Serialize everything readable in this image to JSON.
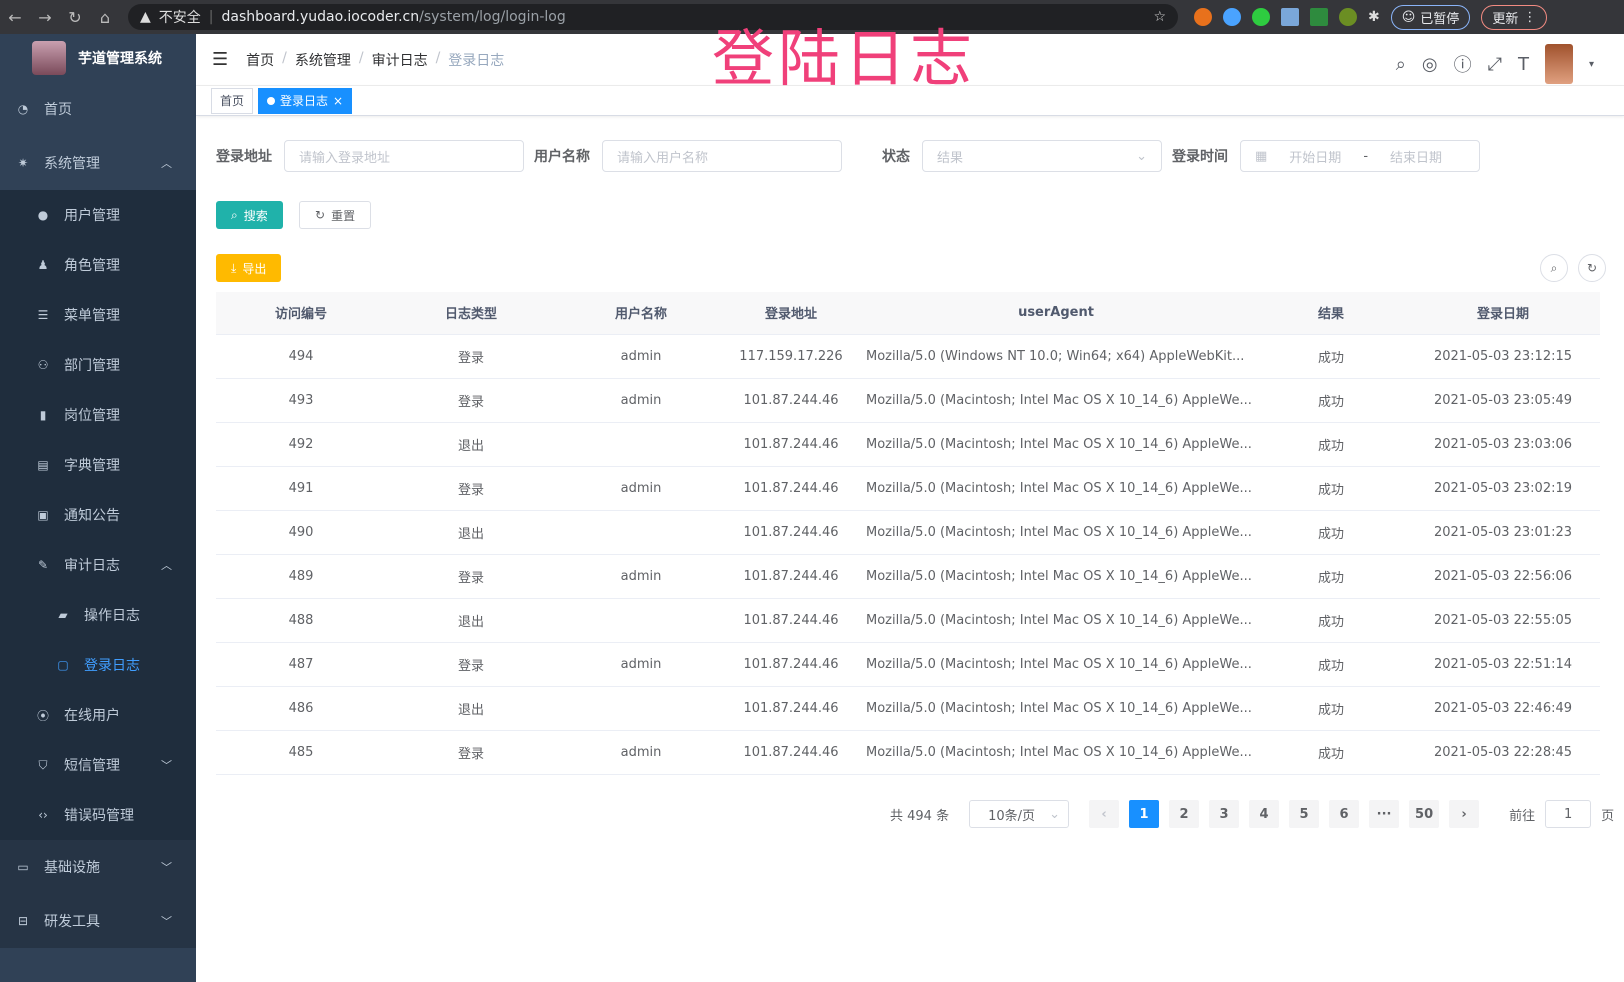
{
  "browser": {
    "security": "不安全",
    "url_host": "dashboard.yudao.iocoder.cn",
    "url_path": "/system/log/login-log",
    "paused": "已暂停",
    "update": "更新"
  },
  "app": {
    "title": "芋道管理系统"
  },
  "watermark": "登陆日志",
  "sidebar": {
    "items": [
      {
        "label": "首页",
        "icon": "dashboard-icon"
      },
      {
        "label": "系统管理",
        "icon": "gear-icon",
        "expanded": true
      },
      {
        "label": "用户管理",
        "icon": "user-icon"
      },
      {
        "label": "角色管理",
        "icon": "role-icon"
      },
      {
        "label": "菜单管理",
        "icon": "menu-icon"
      },
      {
        "label": "部门管理",
        "icon": "tree-icon"
      },
      {
        "label": "岗位管理",
        "icon": "post-icon"
      },
      {
        "label": "字典管理",
        "icon": "dict-icon"
      },
      {
        "label": "通知公告",
        "icon": "message-icon"
      },
      {
        "label": "审计日志",
        "icon": "log-icon",
        "expanded": true
      },
      {
        "label": "操作日志",
        "icon": "form-icon"
      },
      {
        "label": "登录日志",
        "icon": "logininfor-icon",
        "active": true
      },
      {
        "label": "在线用户",
        "icon": "online-icon"
      },
      {
        "label": "短信管理",
        "icon": "shield-icon"
      },
      {
        "label": "错误码管理",
        "icon": "code-icon"
      },
      {
        "label": "基础设施",
        "icon": "monitor-icon"
      },
      {
        "label": "研发工具",
        "icon": "toolbox-icon"
      }
    ]
  },
  "breadcrumb": [
    "首页",
    "系统管理",
    "审计日志",
    "登录日志"
  ],
  "tags": [
    {
      "label": "首页"
    },
    {
      "label": "登录日志",
      "active": true
    }
  ],
  "filters": {
    "ip": {
      "label": "登录地址",
      "placeholder": "请输入登录地址"
    },
    "username": {
      "label": "用户名称",
      "placeholder": "请输入用户名称"
    },
    "status": {
      "label": "状态",
      "placeholder": "结果"
    },
    "time": {
      "label": "登录时间",
      "start": "开始日期",
      "sep": "-",
      "end": "结束日期"
    }
  },
  "buttons": {
    "search": "搜索",
    "reset": "重置",
    "export": "导出"
  },
  "table": {
    "columns": [
      "访问编号",
      "日志类型",
      "用户名称",
      "登录地址",
      "userAgent",
      "结果",
      "登录日期"
    ],
    "rows": [
      [
        "494",
        "登录",
        "admin",
        "117.159.17.226",
        "Mozilla/5.0 (Windows NT 10.0; Win64; x64) AppleWebKit...",
        "成功",
        "2021-05-03 23:12:15"
      ],
      [
        "493",
        "登录",
        "admin",
        "101.87.244.46",
        "Mozilla/5.0 (Macintosh; Intel Mac OS X 10_14_6) AppleWe...",
        "成功",
        "2021-05-03 23:05:49"
      ],
      [
        "492",
        "退出",
        "",
        "101.87.244.46",
        "Mozilla/5.0 (Macintosh; Intel Mac OS X 10_14_6) AppleWe...",
        "成功",
        "2021-05-03 23:03:06"
      ],
      [
        "491",
        "登录",
        "admin",
        "101.87.244.46",
        "Mozilla/5.0 (Macintosh; Intel Mac OS X 10_14_6) AppleWe...",
        "成功",
        "2021-05-03 23:02:19"
      ],
      [
        "490",
        "退出",
        "",
        "101.87.244.46",
        "Mozilla/5.0 (Macintosh; Intel Mac OS X 10_14_6) AppleWe...",
        "成功",
        "2021-05-03 23:01:23"
      ],
      [
        "489",
        "登录",
        "admin",
        "101.87.244.46",
        "Mozilla/5.0 (Macintosh; Intel Mac OS X 10_14_6) AppleWe...",
        "成功",
        "2021-05-03 22:56:06"
      ],
      [
        "488",
        "退出",
        "",
        "101.87.244.46",
        "Mozilla/5.0 (Macintosh; Intel Mac OS X 10_14_6) AppleWe...",
        "成功",
        "2021-05-03 22:55:05"
      ],
      [
        "487",
        "登录",
        "admin",
        "101.87.244.46",
        "Mozilla/5.0 (Macintosh; Intel Mac OS X 10_14_6) AppleWe...",
        "成功",
        "2021-05-03 22:51:14"
      ],
      [
        "486",
        "退出",
        "",
        "101.87.244.46",
        "Mozilla/5.0 (Macintosh; Intel Mac OS X 10_14_6) AppleWe...",
        "成功",
        "2021-05-03 22:46:49"
      ],
      [
        "485",
        "登录",
        "admin",
        "101.87.244.46",
        "Mozilla/5.0 (Macintosh; Intel Mac OS X 10_14_6) AppleWe...",
        "成功",
        "2021-05-03 22:28:45"
      ]
    ]
  },
  "pagination": {
    "total": "共 494 条",
    "page_size": "10条/页",
    "pages": [
      "1",
      "2",
      "3",
      "4",
      "5",
      "6",
      "···",
      "50"
    ],
    "current": "1",
    "goto_label": "前往",
    "goto_value": "1",
    "page_suffix": "页"
  },
  "colors": {
    "sidebar": "#304156",
    "active": "#409eff",
    "primary": "#1890ff",
    "search": "#20b2aa",
    "export": "#ffba00",
    "watermark": "#f0407a"
  }
}
